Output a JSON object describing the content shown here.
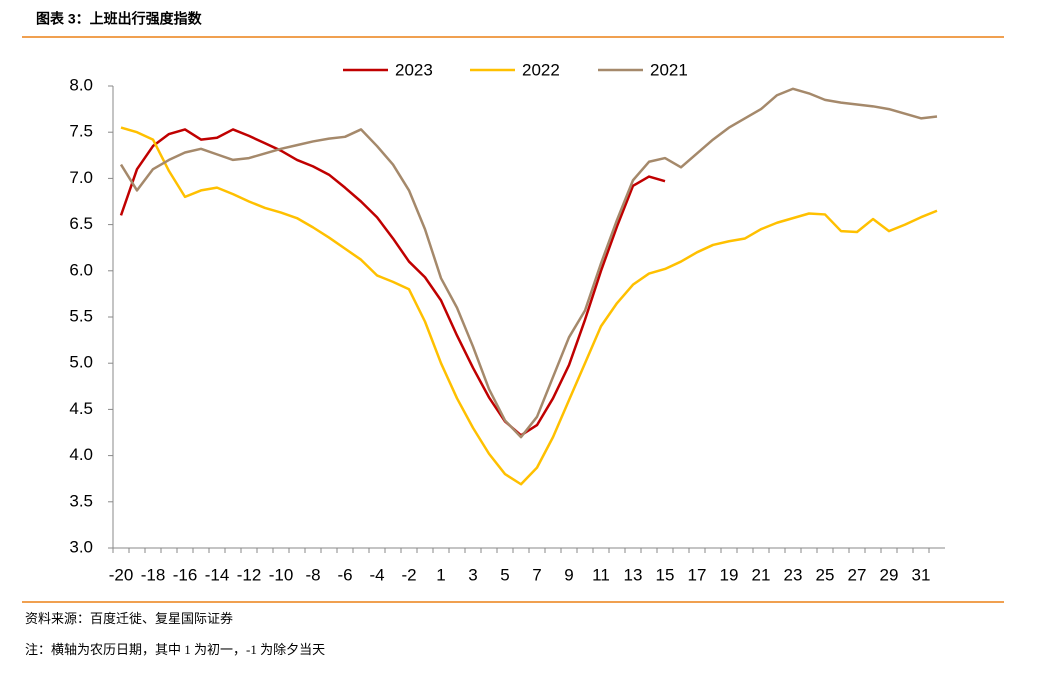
{
  "title": "图表 3：上班出行强度指数",
  "source": "资料来源：百度迁徙、复星国际证券",
  "note": "注：横轴为农历日期，其中 1 为初一，-1 为除夕当天",
  "chart_data": {
    "type": "line",
    "categories": [
      "-20",
      null,
      "-18",
      null,
      "-16",
      null,
      "-14",
      null,
      "-12",
      null,
      "-10",
      null,
      "-8",
      null,
      "-6",
      null,
      "-4",
      null,
      "-2",
      null,
      "1",
      null,
      "3",
      null,
      "5",
      null,
      "7",
      null,
      "9",
      null,
      "11",
      null,
      "13",
      null,
      "15",
      null,
      "17",
      null,
      "19",
      null,
      "21",
      null,
      "23",
      null,
      "25",
      null,
      "27",
      null,
      "29",
      null,
      "31",
      null
    ],
    "series": [
      {
        "name": "2023",
        "color": "#c00000",
        "values": [
          6.6,
          7.1,
          7.35,
          7.48,
          7.53,
          7.42,
          7.44,
          7.53,
          7.46,
          7.38,
          7.3,
          7.2,
          7.13,
          7.04,
          6.9,
          6.75,
          6.58,
          6.35,
          6.1,
          5.93,
          5.68,
          5.3,
          4.95,
          4.63,
          4.37,
          4.22,
          4.33,
          4.62,
          4.98,
          5.47,
          6.0,
          6.48,
          6.92,
          7.02,
          6.97,
          null,
          null,
          null,
          null,
          null,
          null,
          null,
          null,
          null,
          null,
          null,
          null,
          null,
          null,
          null,
          null,
          null
        ]
      },
      {
        "name": "2022",
        "color": "#ffc000",
        "values": [
          7.55,
          7.5,
          7.42,
          7.08,
          6.8,
          6.87,
          6.9,
          6.83,
          6.75,
          6.68,
          6.63,
          6.57,
          6.47,
          6.36,
          6.24,
          6.12,
          5.95,
          5.88,
          5.8,
          5.45,
          5.0,
          4.62,
          4.3,
          4.02,
          3.8,
          3.69,
          3.87,
          4.2,
          4.6,
          5.0,
          5.4,
          5.65,
          5.85,
          5.97,
          6.02,
          6.1,
          6.2,
          6.28,
          6.32,
          6.35,
          6.45,
          6.52,
          6.57,
          6.62,
          6.61,
          6.43,
          6.42,
          6.56,
          6.43,
          6.5,
          6.58,
          6.65
        ]
      },
      {
        "name": "2021",
        "color": "#a5896b",
        "values": [
          7.15,
          6.87,
          7.1,
          7.2,
          7.28,
          7.32,
          7.26,
          7.2,
          7.22,
          7.27,
          7.32,
          7.36,
          7.4,
          7.43,
          7.45,
          7.53,
          7.35,
          7.15,
          6.87,
          6.45,
          5.92,
          5.6,
          5.18,
          4.72,
          4.38,
          4.2,
          4.42,
          4.85,
          5.28,
          5.57,
          6.08,
          6.55,
          6.98,
          7.18,
          7.22,
          7.12,
          7.27,
          7.42,
          7.55,
          7.65,
          7.75,
          7.9,
          7.97,
          7.92,
          7.85,
          7.82,
          7.8,
          7.78,
          7.75,
          7.7,
          7.65,
          7.67
        ]
      }
    ],
    "ylim": [
      3.0,
      8.0
    ],
    "yticks": [
      {
        "value": 3.0,
        "label": "3.0"
      },
      {
        "value": 3.5,
        "label": "3.5"
      },
      {
        "value": 4.0,
        "label": "4.0"
      },
      {
        "value": 4.5,
        "label": "4.5"
      },
      {
        "value": 5.0,
        "label": "5.0"
      },
      {
        "value": 5.5,
        "label": "5.5"
      },
      {
        "value": 6.0,
        "label": "6.0"
      },
      {
        "value": 6.5,
        "label": "6.5"
      },
      {
        "value": 7.0,
        "label": "7.0"
      },
      {
        "value": 7.5,
        "label": "7.5"
      },
      {
        "value": 8.0,
        "label": "8.0"
      }
    ],
    "legend": "top",
    "grid": false
  }
}
